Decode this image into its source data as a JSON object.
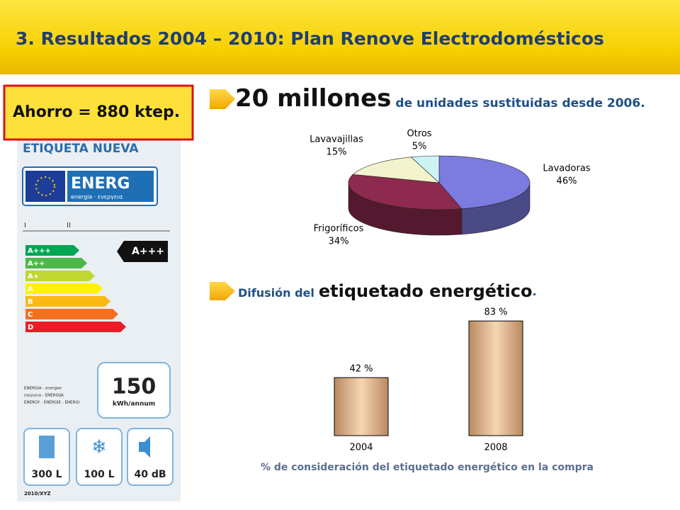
{
  "header": {
    "title": "3.  Resultados 2004 – 2010: Plan Renove Electrodomésticos"
  },
  "savings": {
    "text": "Ahorro = 880 ktep."
  },
  "energy_label": {
    "title": "ETIQUETA NUEVA",
    "brand": "ENERG",
    "brand_sub": "energia · ενεργεια",
    "scale_marks": [
      "I",
      "II"
    ],
    "classes": [
      "A+++",
      "A++",
      "A+",
      "A",
      "B",
      "C",
      "D"
    ],
    "rating": "A+++",
    "consumption": "150",
    "consumption_unit": "kWh/annum",
    "small_lines": [
      "ENERGIA - energие",
      "ενεργεια - ENERGIJA",
      "ENERGY - ENERGIE - ENERGI"
    ],
    "specs": [
      "300 L",
      "100 L",
      "40 dB"
    ],
    "footer": "2010/XYZ"
  },
  "headline": {
    "big": "20 millones",
    "rest": "de unidades sustituidas desde 2006",
    "period": "."
  },
  "section2": {
    "prefix": "Difusión del",
    "big": "etiquetado energético",
    "period": "."
  },
  "chart_data": [
    {
      "type": "pie",
      "categories": [
        "Lavadoras",
        "Frigoríficos",
        "Lavavajillas",
        "Otros"
      ],
      "values": [
        46,
        34,
        15,
        5
      ],
      "value_labels": [
        "46%",
        "34%",
        "15%",
        "5%"
      ],
      "colors": [
        "#7b7be0",
        "#8e2a4e",
        "#f2f2cc",
        "#ccf4f4"
      ]
    },
    {
      "type": "bar",
      "categories": [
        "2004",
        "2008"
      ],
      "values": [
        42,
        83
      ],
      "value_labels": [
        "42 %",
        "83 %"
      ],
      "ylim": [
        0,
        100
      ],
      "color": "#d2a67c",
      "caption": "% de consideración del etiquetado energético en la compra"
    }
  ]
}
